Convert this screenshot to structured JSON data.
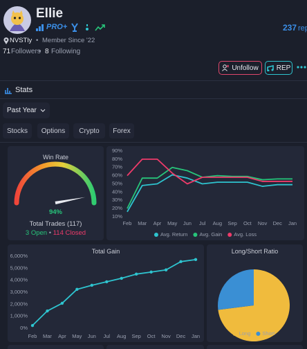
{
  "profile": {
    "name": "Ellie",
    "badge": "PRO+",
    "rep_count": "237",
    "rep_label": "rep",
    "location": "NVSTly",
    "member_since": "Member Since '22",
    "followers_count": "71",
    "followers_label": "Followers",
    "following_count": "8",
    "following_label": "Following",
    "unfollow_button": "Unfollow",
    "rep_button": "REP"
  },
  "stats": {
    "title": "Stats",
    "period": "Past Year",
    "tabs": [
      "Stocks",
      "Options",
      "Crypto",
      "Forex"
    ]
  },
  "chart_data": [
    {
      "type": "gauge",
      "title": "Win Rate",
      "value": 94,
      "value_label": "94%",
      "ylim": [
        0,
        100
      ],
      "subtitle": "Total Trades (117)",
      "annotations": [
        "3 Open",
        "114 Closed"
      ]
    },
    {
      "type": "line",
      "categories": [
        "Feb",
        "Mar",
        "Apr",
        "May",
        "Jun",
        "Jul",
        "Aug",
        "Sep",
        "Oct",
        "Nov",
        "Dec",
        "Jan"
      ],
      "ylim": [
        10,
        90
      ],
      "yticks": [
        {
          "value": 10,
          "label": "10%"
        },
        {
          "value": 20,
          "label": "20%"
        },
        {
          "value": 30,
          "label": "30%"
        },
        {
          "value": 40,
          "label": "40%"
        },
        {
          "value": 50,
          "label": "50%"
        },
        {
          "value": 60,
          "label": "60%"
        },
        {
          "value": 70,
          "label": "70%"
        },
        {
          "value": 80,
          "label": "80%"
        },
        {
          "value": 90,
          "label": "90%"
        }
      ],
      "series": [
        {
          "name": "Avg. Return",
          "color": "#2ec4cf",
          "values": [
            16,
            48,
            50,
            61,
            57,
            50,
            52,
            52,
            52,
            47,
            49,
            49
          ]
        },
        {
          "name": "Avg. Gain",
          "color": "#27c47a",
          "values": [
            20,
            57,
            57,
            70,
            66,
            58,
            60,
            59,
            59,
            55,
            56,
            56
          ]
        },
        {
          "name": "Avg. Loss",
          "color": "#ee3b6a",
          "values": [
            60,
            80,
            80,
            63,
            50,
            58,
            58,
            58,
            58,
            53,
            53,
            53
          ]
        }
      ],
      "legend": "bottom"
    },
    {
      "type": "line",
      "title": "Total Gain",
      "categories": [
        "Feb",
        "Mar",
        "Apr",
        "May",
        "Jun",
        "Jul",
        "Aug",
        "Sep",
        "Oct",
        "Nov",
        "Dec",
        "Jan"
      ],
      "ylim": [
        0,
        6000
      ],
      "yticks": [
        {
          "value": 0,
          "label": "0%"
        },
        {
          "value": 1000,
          "label": "1,000%"
        },
        {
          "value": 2000,
          "label": "2,000%"
        },
        {
          "value": 3000,
          "label": "3,000%"
        },
        {
          "value": 4000,
          "label": "4,000%"
        },
        {
          "value": 5000,
          "label": "5,000%"
        },
        {
          "value": 6000,
          "label": "6,000%"
        }
      ],
      "values": [
        230,
        1440,
        2080,
        3240,
        3580,
        3870,
        4160,
        4510,
        4680,
        4860,
        5550,
        5720
      ],
      "color": "#2ec4cf",
      "markers": true
    },
    {
      "type": "pie",
      "title": "Long/Short Ratio",
      "categories": [
        "Long",
        "Short"
      ],
      "values": [
        73,
        27
      ],
      "colors": [
        "#f0bb3d",
        "#3a8fd4"
      ],
      "legend": "bottom"
    }
  ]
}
